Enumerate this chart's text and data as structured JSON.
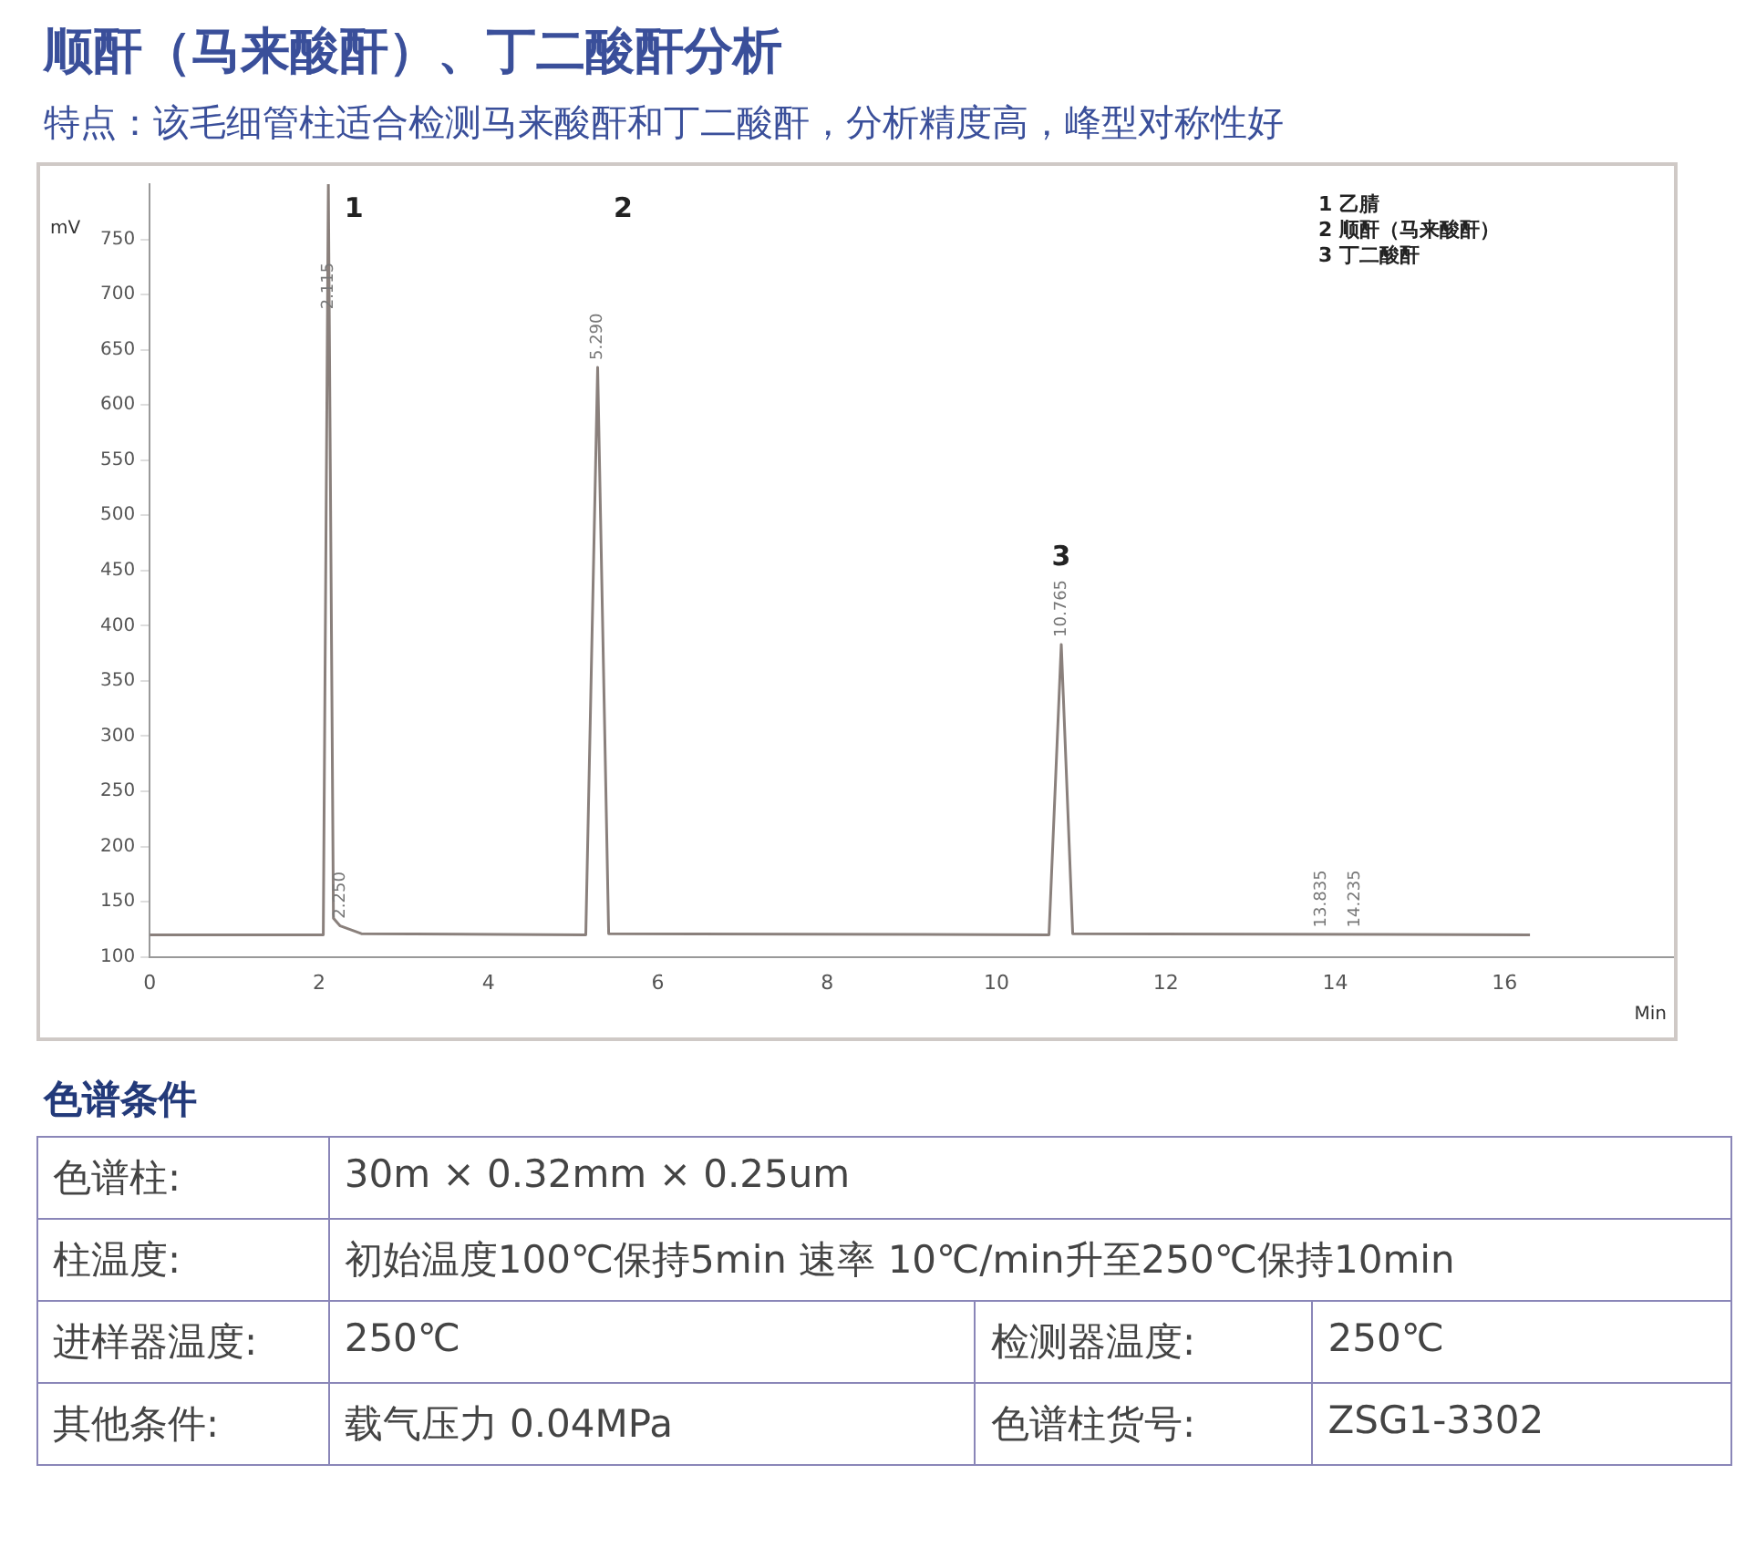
{
  "chart_data": {
    "type": "line",
    "title": "顺酐（马来酸酐）、丁二酸酐分析",
    "subtitle": "特点：该毛细管柱适合检测马来酸酐和丁二酸酐，分析精度高，峰型对称性好",
    "xlabel": "Min",
    "ylabel": "mV",
    "x": [
      0,
      2.05,
      2.11,
      2.17,
      2.25,
      2.5,
      5.15,
      5.29,
      5.42,
      10.62,
      10.765,
      10.9,
      16.3
    ],
    "series": [
      {
        "color": "#8a807c",
        "values": [
          120,
          120,
          800,
          135,
          128,
          121,
          120,
          634,
          121,
          120,
          383,
          121,
          120
        ]
      }
    ],
    "xlim": [
      0,
      18
    ],
    "xticks": [
      0,
      2,
      4,
      6,
      8,
      10,
      12,
      14,
      16
    ],
    "ylim": [
      100,
      800
    ],
    "yticks": [
      100,
      150,
      200,
      250,
      300,
      350,
      400,
      450,
      500,
      550,
      600,
      650,
      700,
      750
    ],
    "grid": false,
    "legend": false,
    "marker": "none",
    "line_style": "solid",
    "annotations": [
      "1 乙腈",
      "2 顺酐（马来酸酐）",
      "3 丁二酸酐",
      "1",
      "2",
      "3",
      {
        "text": "2.115",
        "x": 2.11,
        "y": 680
      },
      {
        "text": "2.250",
        "x": 2.25,
        "y": 128
      },
      {
        "text": "5.290",
        "x": 5.29,
        "y": 634
      },
      {
        "text": "10.765",
        "x": 10.765,
        "y": 383
      },
      {
        "text": "13.835",
        "x": 13.835,
        "y": 120
      },
      {
        "text": "14.235",
        "x": 14.235,
        "y": 120
      },
      "色谱条件",
      "色谱柱:",
      "30m × 0.32mm × 0.25um",
      "柱温度:",
      "初始温度100℃保持5min  速率 10℃/min升至250℃保持10min",
      "进样器温度:",
      "250℃",
      "检测器温度:",
      "250℃",
      "其他条件:",
      "载气压力 0.04MPa",
      "色谱柱货号:",
      "ZSG1-3302"
    ]
  }
}
